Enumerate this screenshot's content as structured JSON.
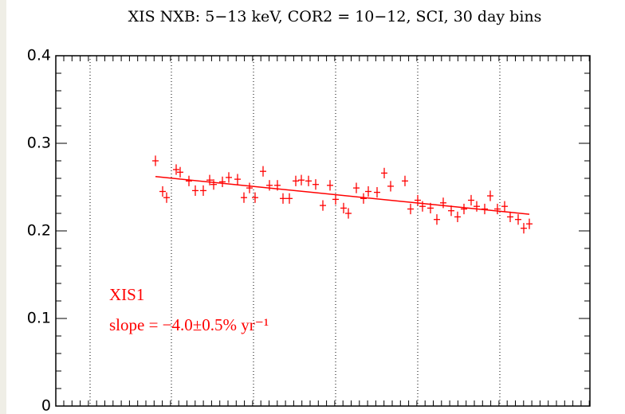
{
  "chart_data": {
    "type": "scatter",
    "title": "XIS NXB: 5−13 keV, COR2 = 10−12, SCI, 30 day bins",
    "annotations": [
      "XIS1",
      "slope = −4.0±0.5% yr⁻¹"
    ],
    "xlim": [
      0,
      670
    ],
    "xgrid": [
      43,
      145,
      248,
      351,
      454,
      557
    ],
    "ylim": [
      0,
      0.4
    ],
    "yticks": [
      0,
      0.1,
      0.2,
      0.3,
      0.4
    ],
    "color": "#ff0000",
    "yerr": 0.006,
    "xerr": 4,
    "series": [
      {
        "name": "XIS1",
        "x": [
          125,
          134,
          139,
          151,
          156,
          167,
          175,
          185,
          193,
          198,
          209,
          217,
          228,
          236,
          243,
          250,
          260,
          268,
          278,
          285,
          293,
          301,
          308,
          317,
          326,
          335,
          344,
          351,
          361,
          367,
          377,
          386,
          392,
          403,
          412,
          420,
          438,
          445,
          454,
          460,
          470,
          478,
          486,
          496,
          504,
          512,
          521,
          528,
          538,
          545,
          554,
          563,
          570,
          580,
          587,
          594
        ],
        "values": [
          0.28,
          0.245,
          0.238,
          0.27,
          0.267,
          0.257,
          0.246,
          0.246,
          0.258,
          0.253,
          0.256,
          0.261,
          0.259,
          0.238,
          0.249,
          0.238,
          0.268,
          0.252,
          0.252,
          0.237,
          0.237,
          0.257,
          0.258,
          0.257,
          0.253,
          0.229,
          0.252,
          0.236,
          0.226,
          0.22,
          0.249,
          0.237,
          0.245,
          0.244,
          0.266,
          0.251,
          0.257,
          0.225,
          0.235,
          0.228,
          0.226,
          0.213,
          0.232,
          0.223,
          0.216,
          0.225,
          0.235,
          0.228,
          0.225,
          0.24,
          0.225,
          0.228,
          0.216,
          0.213,
          0.203,
          0.208
        ]
      }
    ],
    "fit": {
      "x": [
        125,
        594
      ],
      "y": [
        0.262,
        0.219
      ]
    }
  }
}
